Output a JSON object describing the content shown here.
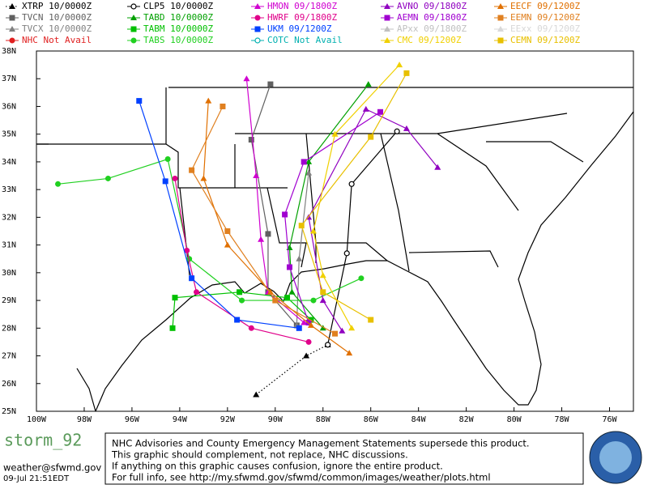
{
  "chart_data": {
    "type": "line",
    "xlim": [
      -100,
      -75
    ],
    "ylim": [
      25,
      38
    ],
    "xticks": [
      {
        "value": -100,
        "label": "100W"
      },
      {
        "value": -98,
        "label": "98W"
      },
      {
        "value": -96,
        "label": "96W"
      },
      {
        "value": -94,
        "label": "94W"
      },
      {
        "value": -92,
        "label": "92W"
      },
      {
        "value": -90,
        "label": "90W"
      },
      {
        "value": -88,
        "label": "88W"
      },
      {
        "value": -86,
        "label": "86W"
      },
      {
        "value": -84,
        "label": "84W"
      },
      {
        "value": -82,
        "label": "82W"
      },
      {
        "value": -80,
        "label": "80W"
      },
      {
        "value": -78,
        "label": "78W"
      },
      {
        "value": -76,
        "label": "76W"
      }
    ],
    "yticks": [
      {
        "value": 25,
        "label": "25N"
      },
      {
        "value": 26,
        "label": "26N"
      },
      {
        "value": 27,
        "label": "27N"
      },
      {
        "value": 28,
        "label": "28N"
      },
      {
        "value": 29,
        "label": "29N"
      },
      {
        "value": 30,
        "label": "30N"
      },
      {
        "value": 31,
        "label": "31N"
      },
      {
        "value": 32,
        "label": "32N"
      },
      {
        "value": 33,
        "label": "33N"
      },
      {
        "value": 34,
        "label": "34N"
      },
      {
        "value": 35,
        "label": "35N"
      },
      {
        "value": 36,
        "label": "36N"
      },
      {
        "value": 37,
        "label": "37N"
      },
      {
        "value": 38,
        "label": "38N"
      }
    ],
    "series": [
      {
        "name": "XTRP 10/0000Z",
        "color": "#000000",
        "marker": "triangle",
        "dash": "dotted",
        "x": [
          -90.8,
          -88.7,
          -87.8
        ],
        "values": [
          25.6,
          27.0,
          27.4
        ]
      },
      {
        "name": "TVCN 10/0000Z",
        "color": "#606060",
        "marker": "square",
        "x": [
          -89.1,
          -90.3,
          -90.3,
          -91.0,
          -90.2
        ],
        "values": [
          28.1,
          29.3,
          31.4,
          34.8,
          36.8
        ]
      },
      {
        "name": "TVCX 10/0000Z",
        "color": "#808080",
        "marker": "triangle",
        "x": [
          -89.1,
          -89.0,
          -88.6
        ],
        "values": [
          28.1,
          30.5,
          33.6
        ]
      },
      {
        "name": "NHC Not Avail",
        "color": "#e02020",
        "marker": "circle",
        "x": [],
        "values": []
      },
      {
        "name": "CLP5 10/0000Z",
        "color": "#000000",
        "marker": "open-circle",
        "x": [
          -87.8,
          -87.0,
          -86.8,
          -84.9
        ],
        "values": [
          27.4,
          30.7,
          33.2,
          35.1
        ]
      },
      {
        "name": "TABD 10/0000Z",
        "color": "#00a000",
        "marker": "triangle",
        "x": [
          -88.0,
          -89.3,
          -89.4,
          -88.6,
          -86.1
        ],
        "values": [
          28.0,
          29.3,
          30.9,
          34.0,
          36.8
        ]
      },
      {
        "name": "TABM 10/0000Z",
        "color": "#00c000",
        "marker": "square",
        "x": [
          -88.5,
          -89.5,
          -91.5,
          -94.2,
          -94.3
        ],
        "values": [
          28.3,
          29.1,
          29.3,
          29.1,
          28.0
        ]
      },
      {
        "name": "TABS 10/0000Z",
        "color": "#20d020",
        "marker": "circle",
        "x": [
          -86.4,
          -88.4,
          -91.4,
          -93.6,
          -94.5,
          -97.0,
          -99.1
        ],
        "values": [
          29.8,
          29.0,
          29.0,
          30.5,
          34.1,
          33.4,
          33.2
        ]
      },
      {
        "name": "HMON 09/1800Z",
        "color": "#d000d0",
        "marker": "triangle",
        "x": [
          -88.8,
          -90.3,
          -90.6,
          -90.8,
          -91.2
        ],
        "values": [
          28.2,
          29.3,
          31.2,
          33.5,
          37.0
        ]
      },
      {
        "name": "HWRF 09/1800Z",
        "color": "#e0008a",
        "marker": "circle",
        "x": [
          -88.6,
          -91.0,
          -93.3,
          -93.7,
          -94.2
        ],
        "values": [
          27.5,
          28.0,
          29.3,
          30.8,
          33.4
        ]
      },
      {
        "name": "UKM 09/1200Z",
        "color": "#0040ff",
        "marker": "square",
        "x": [
          -89.0,
          -91.6,
          -93.5,
          -94.6,
          -95.7
        ],
        "values": [
          28.0,
          28.3,
          29.8,
          33.3,
          36.2
        ]
      },
      {
        "name": "COTC Not Avail",
        "color": "#00b0b0",
        "marker": "open-circle",
        "x": [],
        "values": []
      },
      {
        "name": "AVNO 09/1800Z",
        "color": "#9000c0",
        "marker": "triangle",
        "x": [
          -87.2,
          -88.0,
          -88.6,
          -86.2,
          -84.5,
          -83.2
        ],
        "values": [
          27.9,
          29.0,
          32.0,
          35.9,
          35.2,
          33.8
        ]
      },
      {
        "name": "AEMN 09/1800Z",
        "color": "#a000d0",
        "marker": "square",
        "x": [
          -88.6,
          -89.4,
          -89.6,
          -88.8,
          -85.6
        ],
        "values": [
          28.2,
          30.2,
          32.1,
          34.0,
          35.8
        ]
      },
      {
        "name": "APxx 09/1800Z",
        "color": "#c0c0c0",
        "marker": "triangle",
        "x": [],
        "values": []
      },
      {
        "name": "CMC 09/1200Z",
        "color": "#f0d000",
        "marker": "triangle",
        "x": [
          -86.8,
          -88.0,
          -88.4,
          -87.5,
          -84.8
        ],
        "values": [
          28.0,
          29.9,
          31.5,
          35.0,
          37.5
        ]
      },
      {
        "name": "EECF 09/1200Z",
        "color": "#e07000",
        "marker": "triangle",
        "x": [
          -86.9,
          -88.5,
          -90.2,
          -92.0,
          -93.0,
          -92.8
        ],
        "values": [
          27.1,
          28.1,
          29.3,
          31.0,
          33.4,
          36.2
        ]
      },
      {
        "name": "EEMN 09/1200Z",
        "color": "#e08020",
        "marker": "square",
        "x": [
          -87.5,
          -90.0,
          -92.0,
          -93.5,
          -92.2
        ],
        "values": [
          27.8,
          29.0,
          31.5,
          33.7,
          36.0
        ]
      },
      {
        "name": "EExx 09/1200Z",
        "color": "#d8d8d8",
        "marker": "triangle",
        "x": [],
        "values": []
      },
      {
        "name": "CEMN 09/1200Z",
        "color": "#e8c000",
        "marker": "square",
        "x": [
          -86.0,
          -88.0,
          -88.9,
          -86.0,
          -84.5
        ],
        "values": [
          28.3,
          29.3,
          31.7,
          34.9,
          37.2
        ]
      }
    ]
  },
  "footer": {
    "storm": "storm_92",
    "email": "weather@sfwmd.gov",
    "timestamp": "09-Jul 21:51EDT",
    "disclaimer": [
      "NHC Advisories and County Emergency Management Statements supersede this product.",
      "This graphic should complement, not replace, NHC discussions.",
      "If anything on this graphic causes confusion, ignore the entire product.",
      "For full info, see  http://my.sfwmd.gov/sfwmd/common/images/weather/plots.html"
    ]
  }
}
